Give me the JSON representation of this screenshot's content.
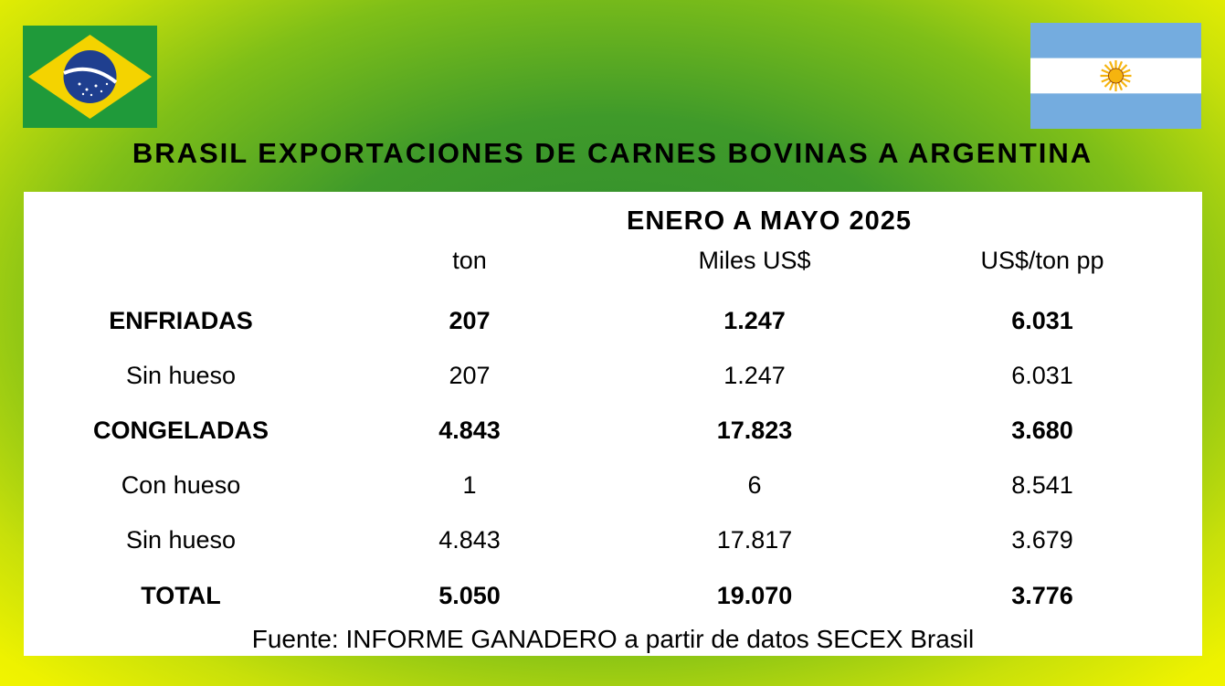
{
  "title": "BRASIL EXPORTACIONES DE CARNES BOVINAS A ARGENTINA",
  "flags": {
    "left": "brazil-flag-icon",
    "right": "argentina-flag-icon"
  },
  "colors": {
    "brazil_green": "#1f9a3a",
    "brazil_yellow": "#f4d300",
    "brazil_blue": "#1f3f8f",
    "argentina_blue": "#74acdf",
    "sun": "#f6b40e"
  },
  "table": {
    "period": "ENERO A MAYO 2025",
    "columns": [
      "",
      "ton",
      "Miles US$",
      "US$/ton pp"
    ],
    "rows": [
      {
        "label": "ENFRIADAS",
        "ton": "207",
        "miles": "1.247",
        "precio": "6.031",
        "bold": true
      },
      {
        "label": "Sin hueso",
        "ton": "207",
        "miles": "1.247",
        "precio": "6.031",
        "bold": false
      },
      {
        "label": "CONGELADAS",
        "ton": "4.843",
        "miles": "17.823",
        "precio": "3.680",
        "bold": true
      },
      {
        "label": "Con hueso",
        "ton": "1",
        "miles": "6",
        "precio": "8.541",
        "bold": false
      },
      {
        "label": "Sin hueso",
        "ton": "4.843",
        "miles": "17.817",
        "precio": "3.679",
        "bold": false
      },
      {
        "label": "TOTAL",
        "ton": "5.050",
        "miles": "19.070",
        "precio": "3.776",
        "bold": true
      }
    ]
  },
  "source": "Fuente: INFORME GANADERO a partir de datos SECEX Brasil"
}
